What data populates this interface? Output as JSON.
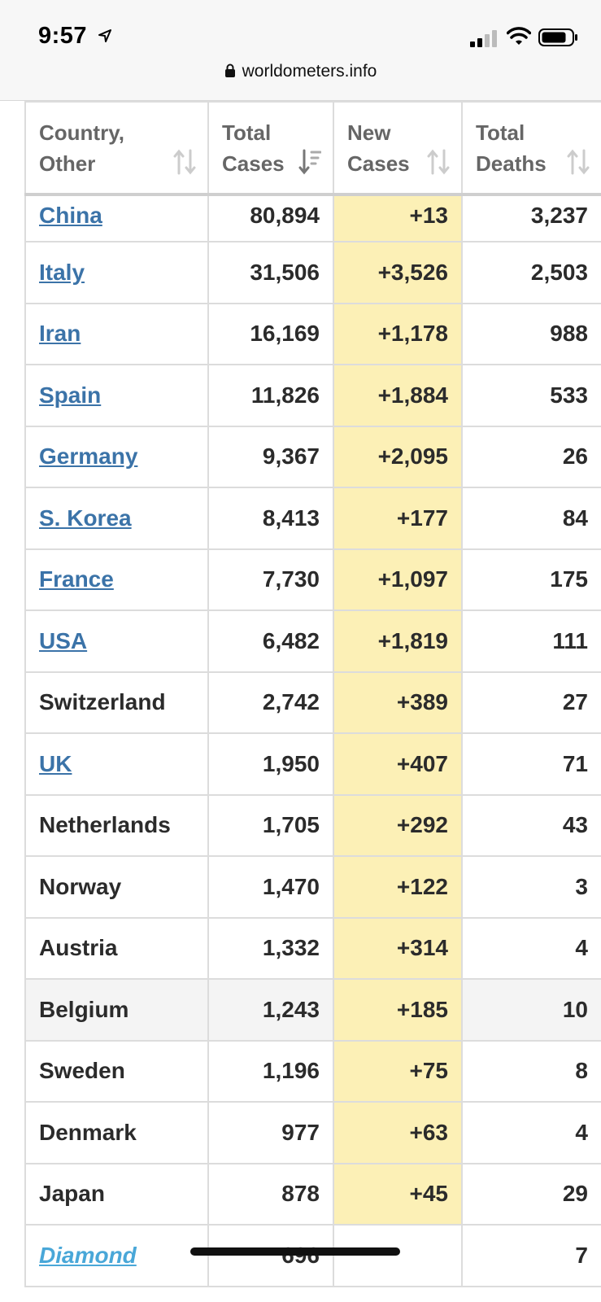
{
  "status_bar": {
    "time": "9:57",
    "icons": [
      "location-arrow-icon",
      "cell-signal-icon",
      "wifi-icon",
      "battery-icon"
    ]
  },
  "browser": {
    "url": "worldometers.info",
    "lock_icon": "lock-icon"
  },
  "table": {
    "columns": [
      {
        "line1": "Country,",
        "line2": "Other",
        "sort_icon": "sort-both-icon"
      },
      {
        "line1": "Total",
        "line2": "Cases",
        "sort_icon": "sort-descending-icon"
      },
      {
        "line1": "New",
        "line2": "Cases",
        "sort_icon": "sort-both-icon"
      },
      {
        "line1": "Total",
        "line2": "Deaths",
        "sort_icon": "sort-both-icon"
      }
    ],
    "rows": [
      {
        "country": "China",
        "total_cases": "80,894",
        "new_cases": "+13",
        "total_deaths": "3,237"
      },
      {
        "country": "Italy",
        "total_cases": "31,506",
        "new_cases": "+3,526",
        "total_deaths": "2,503"
      },
      {
        "country": "Iran",
        "total_cases": "16,169",
        "new_cases": "+1,178",
        "total_deaths": "988"
      },
      {
        "country": "Spain",
        "total_cases": "11,826",
        "new_cases": "+1,884",
        "total_deaths": "533"
      },
      {
        "country": "Germany",
        "total_cases": "9,367",
        "new_cases": "+2,095",
        "total_deaths": "26"
      },
      {
        "country": "S. Korea",
        "total_cases": "8,413",
        "new_cases": "+177",
        "total_deaths": "84"
      },
      {
        "country": "France",
        "total_cases": "7,730",
        "new_cases": "+1,097",
        "total_deaths": "175"
      },
      {
        "country": "USA",
        "total_cases": "6,482",
        "new_cases": "+1,819",
        "total_deaths": "111"
      },
      {
        "country": "Switzerland",
        "total_cases": "2,742",
        "new_cases": "+389",
        "total_deaths": "27"
      },
      {
        "country": "UK",
        "total_cases": "1,950",
        "new_cases": "+407",
        "total_deaths": "71"
      },
      {
        "country": "Netherlands",
        "total_cases": "1,705",
        "new_cases": "+292",
        "total_deaths": "43"
      },
      {
        "country": "Norway",
        "total_cases": "1,470",
        "new_cases": "+122",
        "total_deaths": "3"
      },
      {
        "country": "Austria",
        "total_cases": "1,332",
        "new_cases": "+314",
        "total_deaths": "4"
      },
      {
        "country": "Belgium",
        "total_cases": "1,243",
        "new_cases": "+185",
        "total_deaths": "10"
      },
      {
        "country": "Sweden",
        "total_cases": "1,196",
        "new_cases": "+75",
        "total_deaths": "8"
      },
      {
        "country": "Denmark",
        "total_cases": "977",
        "new_cases": "+63",
        "total_deaths": "4"
      },
      {
        "country": "Japan",
        "total_cases": "878",
        "new_cases": "+45",
        "total_deaths": "29"
      },
      {
        "country": "Diamond",
        "total_cases": "696",
        "new_cases": "",
        "total_deaths": "7"
      }
    ]
  },
  "colors": {
    "link": "#3b73a8",
    "new_cases_highlight": "#fcf0b6",
    "header_text": "#666666"
  }
}
